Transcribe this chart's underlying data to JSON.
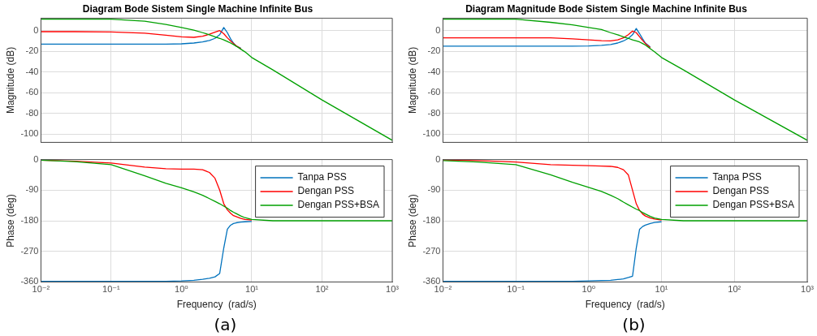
{
  "chart_data": [
    {
      "type": "line",
      "title": "Diagram Bode Sistem Single Machine Infinite Bus",
      "ylabel": "Magnitude (dB)",
      "log": "x",
      "grid": true,
      "tick_labels": "y",
      "x": [
        0.01,
        0.03,
        0.1,
        0.3,
        0.6,
        1,
        1.5,
        2,
        2.5,
        3,
        3.5,
        4,
        4.5,
        5,
        5.5,
        6,
        7,
        8,
        10,
        20,
        100,
        1000
      ],
      "xlim": [
        0.01,
        1000
      ],
      "xticks": [
        {
          "value": 0.01,
          "label": null
        },
        {
          "value": 0.1,
          "label": null
        },
        {
          "value": 1,
          "label": null
        },
        {
          "value": 10,
          "label": null
        },
        {
          "value": 100,
          "label": null
        },
        {
          "value": 1000,
          "label": null
        }
      ],
      "ylim": [
        -108,
        12
      ],
      "yticks": [
        -100,
        -80,
        -60,
        -40,
        -20,
        0
      ],
      "series": [
        {
          "color": "#0072bd",
          "values": [
            -13,
            -13,
            -13,
            -13,
            -13,
            -12.8,
            -12,
            -11,
            -9.5,
            -7.5,
            -4,
            3,
            -2,
            -8,
            -12,
            -15,
            -17,
            null,
            null,
            null,
            null,
            null
          ]
        },
        {
          "color": "#ff0000",
          "values": [
            -1,
            -1,
            -1.3,
            -2.5,
            -4.5,
            -6,
            -6.5,
            -5.5,
            -3.5,
            -1.5,
            0,
            -3,
            -7,
            -10,
            -12.5,
            -14.5,
            -17.5,
            null,
            null,
            null,
            null,
            null
          ]
        },
        {
          "color": "#00a000",
          "values": [
            11,
            11,
            11,
            9,
            6,
            3,
            0.5,
            -2,
            -4,
            -6,
            -7.5,
            -9,
            -10.5,
            -12,
            -13.5,
            -15,
            -18,
            -20.5,
            -26,
            -38,
            -67,
            -106
          ]
        }
      ]
    },
    {
      "type": "line",
      "title": "Diagram Magnitude Bode Sistem Single Machine Infinite Bus",
      "ylabel": "Magnitude (dB)",
      "log": "x",
      "grid": true,
      "tick_labels": "y",
      "x": [
        0.01,
        0.03,
        0.1,
        0.3,
        0.6,
        1,
        1.5,
        2,
        2.5,
        3,
        3.5,
        4,
        4.5,
        5,
        5.5,
        6,
        7,
        8,
        10,
        20,
        100,
        1000
      ],
      "xlim": [
        0.01,
        1000
      ],
      "xticks": [
        {
          "value": 0.01,
          "label": null
        },
        {
          "value": 0.1,
          "label": null
        },
        {
          "value": 1,
          "label": null
        },
        {
          "value": 10,
          "label": null
        },
        {
          "value": 100,
          "label": null
        },
        {
          "value": 1000,
          "label": null
        }
      ],
      "ylim": [
        -108,
        12
      ],
      "yticks": [
        -100,
        -80,
        -60,
        -40,
        -20,
        0
      ],
      "series": [
        {
          "color": "#0072bd",
          "values": [
            -15,
            -15,
            -15,
            -15,
            -15,
            -14.8,
            -14.3,
            -13.5,
            -12,
            -10,
            -7.5,
            -4,
            2,
            -3,
            -8,
            -12,
            -16,
            null,
            null,
            null,
            null,
            null
          ]
        },
        {
          "color": "#ff0000",
          "values": [
            -7,
            -7,
            -7,
            -7,
            -8,
            -9,
            -9.7,
            -10,
            -9,
            -7,
            -4,
            -0.5,
            -2,
            -6,
            -9.5,
            -12.5,
            -16.5,
            null,
            null,
            null,
            null,
            null
          ]
        },
        {
          "color": "#00a000",
          "values": [
            11,
            11,
            11,
            8,
            5.5,
            3,
            1,
            -2,
            -4,
            -6,
            -7.5,
            -9,
            -10,
            -11,
            -12.5,
            -14,
            -17.5,
            -20.5,
            -26,
            -38,
            -67,
            -106
          ]
        }
      ]
    },
    {
      "type": "line",
      "xlabel": "Frequency  (rad/s)",
      "ylabel": "Phase (deg)",
      "log": "x",
      "grid": true,
      "legend": "top right",
      "annotations": [
        "(a)"
      ],
      "x": [
        0.01,
        0.03,
        0.1,
        0.3,
        0.6,
        1,
        1.5,
        2,
        2.5,
        3,
        3.5,
        4,
        4.5,
        5,
        5.5,
        6,
        7,
        8,
        10,
        20,
        100,
        1000
      ],
      "xlim": [
        0.01,
        1000
      ],
      "xticks": [
        {
          "value": 0.01,
          "label": "10⁻²"
        },
        {
          "value": 0.1,
          "label": "10⁻¹"
        },
        {
          "value": 1,
          "label": "10⁰"
        },
        {
          "value": 10,
          "label": "10¹"
        },
        {
          "value": 100,
          "label": "10²"
        },
        {
          "value": 1000,
          "label": "10³"
        }
      ],
      "ylim": [
        -360,
        0
      ],
      "yticks": [
        -360,
        -270,
        -180,
        -90,
        0
      ],
      "series": [
        {
          "name": "Tanpa PSS",
          "color": "#0072bd",
          "values": [
            -358,
            -358,
            -358,
            -358,
            -358,
            -357,
            -355,
            -352,
            -349,
            -345,
            -335,
            -260,
            -205,
            -193,
            -188,
            -186,
            -184,
            -183,
            -182,
            null,
            null,
            null
          ]
        },
        {
          "name": "Dengan PSS",
          "color": "#ff0000",
          "values": [
            -2,
            -5,
            -10,
            -22,
            -27,
            -28,
            -28,
            -30,
            -38,
            -55,
            -90,
            -130,
            -148,
            -158,
            -165,
            -168,
            -173,
            -176,
            -178,
            null,
            null,
            null
          ]
        },
        {
          "name": "Dengan PSS+BSA",
          "color": "#00a000",
          "values": [
            -2,
            -6,
            -15,
            -48,
            -70,
            -83,
            -95,
            -105,
            -115,
            -123,
            -130,
            -137,
            -143,
            -150,
            -155,
            -159,
            -166,
            -171,
            -176,
            -180,
            -180,
            -180
          ]
        }
      ]
    },
    {
      "type": "line",
      "xlabel": "Frequency  (rad/s)",
      "ylabel": "Phase (deg)",
      "log": "x",
      "grid": true,
      "legend": "top right",
      "annotations": [
        "(b)"
      ],
      "x": [
        0.01,
        0.03,
        0.1,
        0.3,
        0.6,
        1,
        1.5,
        2,
        2.5,
        3,
        3.5,
        4,
        4.5,
        5,
        5.5,
        6,
        7,
        8,
        10,
        20,
        100,
        1000
      ],
      "xlim": [
        0.01,
        1000
      ],
      "xticks": [
        {
          "value": 0.01,
          "label": "10⁻²"
        },
        {
          "value": 0.1,
          "label": "10⁻¹"
        },
        {
          "value": 1,
          "label": "10⁰"
        },
        {
          "value": 10,
          "label": "10¹"
        },
        {
          "value": 100,
          "label": "10²"
        },
        {
          "value": 1000,
          "label": "10³"
        }
      ],
      "ylim": [
        -360,
        0
      ],
      "yticks": [
        -360,
        -270,
        -180,
        -90,
        0
      ],
      "series": [
        {
          "name": "Tanpa PSS",
          "color": "#0072bd",
          "values": [
            -358,
            -358,
            -358,
            -358,
            -358,
            -357,
            -356,
            -355,
            -353,
            -351,
            -347,
            -343,
            -260,
            -205,
            -197,
            -193,
            -188,
            -185,
            -183,
            null,
            null,
            null
          ]
        },
        {
          "name": "Dengan PSS",
          "color": "#ff0000",
          "values": [
            -1,
            -3,
            -7,
            -15,
            -17,
            -18,
            -19,
            -20,
            -23,
            -30,
            -45,
            -90,
            -130,
            -150,
            -160,
            -166,
            -172,
            -175,
            -178,
            null,
            null,
            null
          ]
        },
        {
          "name": "Dengan PSS+BSA",
          "color": "#00a000",
          "values": [
            -3,
            -7,
            -15,
            -45,
            -67,
            -82,
            -94,
            -105,
            -115,
            -125,
            -133,
            -140,
            -146,
            -150,
            -156,
            -160,
            -167,
            -172,
            -176,
            -180,
            -180,
            -180
          ]
        }
      ]
    }
  ]
}
